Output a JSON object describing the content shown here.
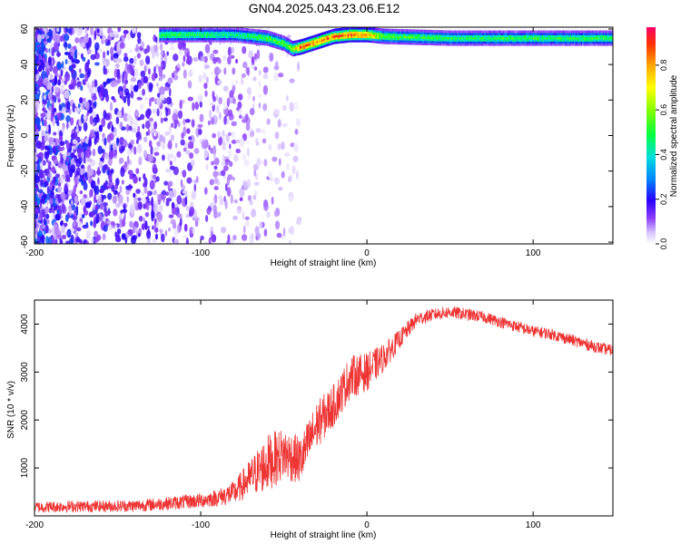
{
  "figure": {
    "title": "GN04.2025.043.23.06.E12"
  },
  "chart_data": [
    {
      "type": "heatmap",
      "xlabel": "Height of straight line (km)",
      "ylabel": "Frequency (Hz)",
      "xlim": [
        -200,
        148
      ],
      "ylim": [
        -61,
        61
      ],
      "xticks": [
        -200,
        -100,
        0,
        100
      ],
      "yticks": [
        60,
        40,
        20,
        0,
        -20,
        -40,
        -60
      ],
      "colorbar": {
        "label": "Normalized spectral amplitude",
        "range": [
          0,
          0.97
        ],
        "ticks": [
          0.0,
          0.2,
          0.4,
          0.6,
          0.8
        ]
      },
      "dominant_band": {
        "description_points_height_km": [
          -120,
          -80,
          -60,
          -50,
          -45,
          -40,
          -30,
          -20,
          -10,
          0,
          10,
          50,
          100,
          148
        ],
        "frequency_hz": [
          57,
          57,
          55,
          52,
          49,
          50,
          53,
          56,
          57,
          57,
          56,
          55,
          55,
          55
        ],
        "peak_amplitude": [
          0.55,
          0.5,
          0.6,
          0.6,
          0.7,
          0.95,
          0.95,
          0.95,
          0.97,
          0.9,
          0.6,
          0.55,
          0.55,
          0.55
        ]
      },
      "noise_region": {
        "height_km": [
          -200,
          -70
        ],
        "amplitude_range": [
          0.0,
          0.2
        ]
      }
    },
    {
      "type": "line",
      "xlabel": "Height of straight line (km)",
      "ylabel": "SNR (10 * v/v)",
      "xlim": [
        -200,
        148
      ],
      "ylim": [
        0,
        4500
      ],
      "xticks": [
        -200,
        -100,
        0,
        100
      ],
      "yticks": [
        1000,
        2000,
        3000,
        4000
      ],
      "color": "#ee3333",
      "series": [
        {
          "x": [
            -200,
            -180,
            -160,
            -140,
            -120,
            -100,
            -90,
            -80,
            -70,
            -60,
            -50,
            -40,
            -30,
            -20,
            -10,
            0,
            10,
            20,
            30,
            40,
            50,
            60,
            70,
            80,
            90,
            100,
            110,
            120,
            130,
            140,
            148
          ],
          "y": [
            180,
            200,
            200,
            210,
            260,
            320,
            380,
            480,
            800,
            1100,
            1300,
            1150,
            1900,
            2300,
            2900,
            3000,
            3300,
            3700,
            4100,
            4200,
            4250,
            4200,
            4150,
            4050,
            3950,
            3850,
            3800,
            3700,
            3600,
            3500,
            3450
          ],
          "spread": [
            120,
            120,
            120,
            130,
            140,
            160,
            180,
            250,
            400,
            600,
            550,
            500,
            500,
            450,
            450,
            400,
            300,
            200,
            150,
            130,
            130,
            130,
            120,
            120,
            120,
            120,
            120,
            120,
            120,
            120,
            120
          ]
        }
      ]
    }
  ]
}
